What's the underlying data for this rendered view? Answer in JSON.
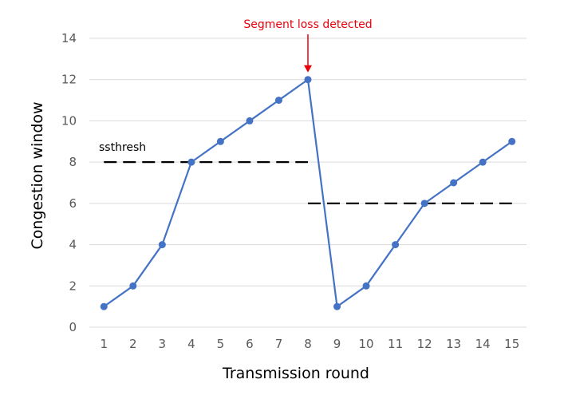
{
  "chart_data": {
    "type": "line",
    "xlabel": "Transmission round",
    "ylabel": "Congestion window",
    "ylim": [
      0,
      14
    ],
    "yticks": [
      0,
      2,
      4,
      6,
      8,
      10,
      12,
      14
    ],
    "grid": true,
    "categories": [
      "1",
      "2",
      "3",
      "4",
      "5",
      "6",
      "7",
      "8",
      "9",
      "10",
      "11",
      "12",
      "13",
      "14",
      "15"
    ],
    "series": [
      {
        "values": [
          1,
          2,
          4,
          8,
          9,
          10,
          11,
          12,
          1,
          2,
          4,
          6,
          7,
          8,
          9
        ],
        "color": "#4472c4"
      }
    ],
    "reference_lines": [
      {
        "label": "ssthresh",
        "y": 8,
        "x_from": 1,
        "x_to": 8
      },
      {
        "label": "",
        "y": 6,
        "x_from": 8,
        "x_to": 15
      }
    ],
    "annotations": [
      {
        "text": "Segment loss detected",
        "x": 8,
        "y": 12,
        "color": "#e8000b"
      }
    ]
  }
}
